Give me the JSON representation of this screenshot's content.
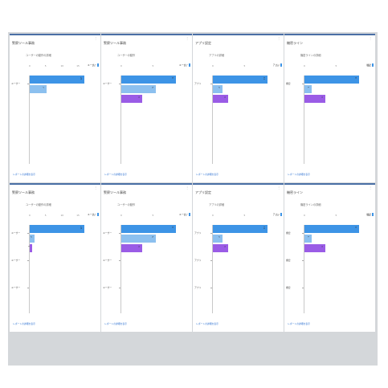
{
  "colors": {
    "blue": "#3d94e6",
    "light_blue": "#8cc0ef",
    "purple": "#9a5ce6",
    "link": "#2a6fd0"
  },
  "menu_glyph": "⋮",
  "footer_text": "レポートの詳細を表示",
  "panels": [
    {
      "title": "警察ツール事務",
      "desc": "ユーザーの動作の詳細",
      "ticks": [
        "0",
        "5",
        "10",
        "15",
        "20"
      ],
      "legend": [
        {
          "label": "ユーザー",
          "color": "#3d94e6"
        }
      ],
      "categories": [
        {
          "label": "ユーザー"
        }
      ],
      "bars": [
        {
          "value": "23",
          "color": "#3d94e6"
        },
        {
          "value": "7",
          "color": "#8cc0ef"
        }
      ],
      "footer": "レポートの詳細を表示"
    },
    {
      "title": "警察ツール事務",
      "desc": "ユーザーの動作",
      "ticks": [
        "0",
        "5",
        "10"
      ],
      "legend": [
        {
          "label": "ユーザー",
          "color": "#3d94e6"
        }
      ],
      "categories": [
        {
          "label": "ユーザー"
        }
      ],
      "bars": [
        {
          "value": "8",
          "color": "#3d94e6"
        },
        {
          "value": "5",
          "color": "#8cc0ef"
        },
        {
          "value": "3",
          "color": "#9a5ce6"
        }
      ],
      "footer": "レポートの詳細を表示"
    },
    {
      "title": "アプリ設定",
      "desc": "アプリの詳細",
      "ticks": [
        "0",
        "5",
        "10"
      ],
      "legend": [
        {
          "label": "アプリ",
          "color": "#3d94e6"
        }
      ],
      "categories": [
        {
          "label": "アプリ"
        }
      ],
      "bars": [
        {
          "value": "11",
          "color": "#3d94e6"
        },
        {
          "value": "2",
          "color": "#8cc0ef"
        },
        {
          "value": "3",
          "color": "#9a5ce6"
        }
      ],
      "footer": "レポートの詳細を表示"
    },
    {
      "title": "機密ライン",
      "desc": "機密ラインの詳細",
      "ticks": [
        "0",
        "5",
        "10"
      ],
      "legend": [
        {
          "label": "機密",
          "color": "#3d94e6"
        }
      ],
      "categories": [
        {
          "label": "機密"
        }
      ],
      "bars": [
        {
          "value": "8",
          "color": "#3d94e6"
        },
        {
          "value": "1",
          "color": "#8cc0ef"
        },
        {
          "value": "3",
          "color": "#9a5ce6"
        }
      ],
      "footer": "レポートの詳細を表示"
    },
    {
      "title": "警察ツール事務",
      "desc": "ユーザーの動作の詳細",
      "ticks": [
        "0",
        "5",
        "10",
        "15",
        "20"
      ],
      "legend": [
        {
          "label": "ユーザー",
          "color": "#3d94e6"
        }
      ],
      "categories": [
        {
          "label": "ユーザー"
        },
        {
          "label": "ユーザー"
        },
        {
          "label": "ユーザー"
        }
      ],
      "bars": [
        {
          "value": "23",
          "color": "#3d94e6"
        },
        {
          "value": "2",
          "color": "#8cc0ef"
        },
        {
          "value": "1",
          "color": "#9a5ce6"
        }
      ],
      "footer": "レポートの詳細を表示"
    },
    {
      "title": "警察ツール事務",
      "desc": "ユーザーの動作",
      "ticks": [
        "0",
        "5",
        "10"
      ],
      "legend": [
        {
          "label": "ユーザー",
          "color": "#3d94e6"
        }
      ],
      "categories": [
        {
          "label": "ユーザー"
        },
        {
          "label": "ユーザー"
        },
        {
          "label": "ユーザー"
        }
      ],
      "bars": [
        {
          "value": "8",
          "color": "#3d94e6"
        },
        {
          "value": "5",
          "color": "#8cc0ef"
        },
        {
          "value": "3",
          "color": "#9a5ce6"
        }
      ],
      "footer": "レポートの詳細を表示"
    },
    {
      "title": "アプリ設定",
      "desc": "アプリの詳細",
      "ticks": [
        "0",
        "5",
        "10"
      ],
      "legend": [
        {
          "label": "アプリ",
          "color": "#3d94e6"
        }
      ],
      "categories": [
        {
          "label": "アプリ"
        },
        {
          "label": "アプリ"
        },
        {
          "label": "アプリ"
        }
      ],
      "bars": [
        {
          "value": "11",
          "color": "#3d94e6"
        },
        {
          "value": "2",
          "color": "#8cc0ef"
        },
        {
          "value": "3",
          "color": "#9a5ce6"
        }
      ],
      "footer": "レポートの詳細を表示"
    },
    {
      "title": "機密ライン",
      "desc": "機密ラインの詳細",
      "ticks": [
        "0",
        "5",
        "10"
      ],
      "legend": [
        {
          "label": "機密",
          "color": "#3d94e6"
        }
      ],
      "categories": [
        {
          "label": "機密"
        },
        {
          "label": "機密"
        },
        {
          "label": "機密"
        }
      ],
      "bars": [
        {
          "value": "8",
          "color": "#3d94e6"
        },
        {
          "value": "1",
          "color": "#8cc0ef"
        },
        {
          "value": "3",
          "color": "#9a5ce6"
        }
      ],
      "footer": "レポートの詳細を表示"
    }
  ]
}
